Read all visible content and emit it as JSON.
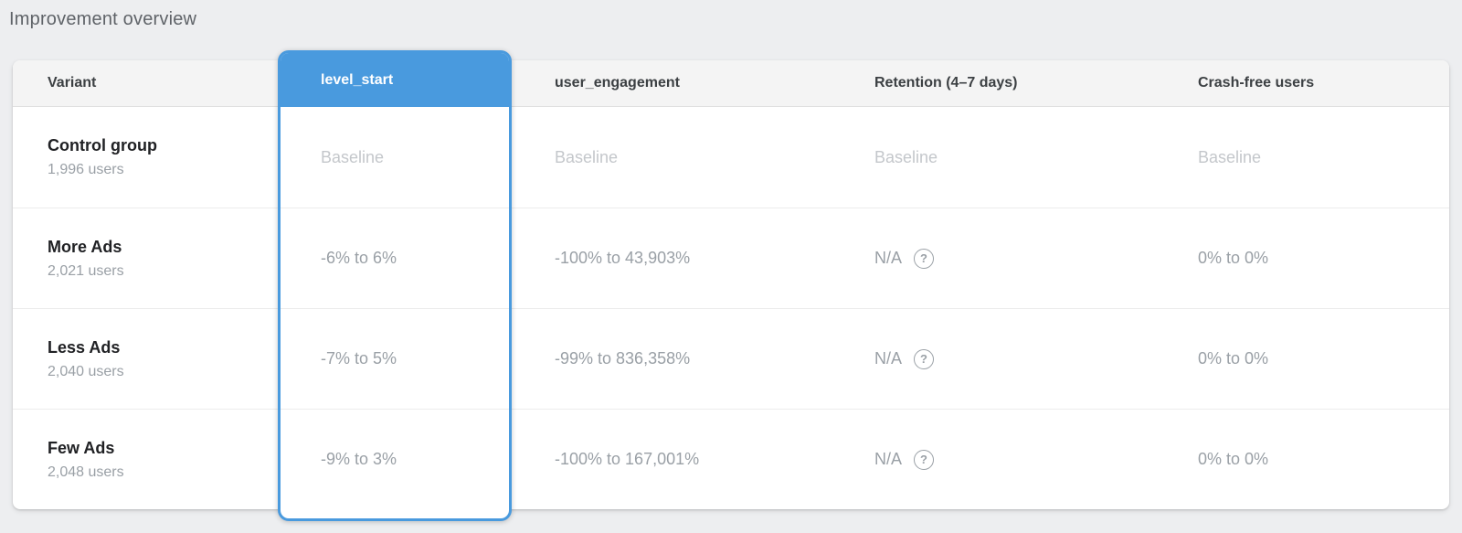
{
  "page": {
    "title": "Improvement overview"
  },
  "colors": {
    "accent_blue": "#499ade",
    "page_background": "#edeef0",
    "header_band": "#f4f4f4",
    "muted_text": "#9aa0a6",
    "baseline_text": "#c4c7cb"
  },
  "icons": {
    "help": "?"
  },
  "table": {
    "columns": {
      "variant": {
        "label": "Variant"
      },
      "level_start": {
        "label": "level_start",
        "selected": true
      },
      "user_engagement": {
        "label": "user_engagement"
      },
      "retention": {
        "label": "Retention (4–7 days)"
      },
      "crash_free": {
        "label": "Crash-free users"
      }
    },
    "rows": [
      {
        "variant": "Control group",
        "users": "1,996 users",
        "level_start": "Baseline",
        "user_engagement": "Baseline",
        "retention": "Baseline",
        "crash_free": "Baseline"
      },
      {
        "variant": "More Ads",
        "users": "2,021 users",
        "level_start": "-6% to 6%",
        "user_engagement": "-100% to 43,903%",
        "retention": "N/A",
        "crash_free": "0% to 0%"
      },
      {
        "variant": "Less Ads",
        "users": "2,040 users",
        "level_start": "-7% to 5%",
        "user_engagement": "-99% to 836,358%",
        "retention": "N/A",
        "crash_free": "0% to 0%"
      },
      {
        "variant": "Few Ads",
        "users": "2,048 users",
        "level_start": "-9% to 3%",
        "user_engagement": "-100% to 167,001%",
        "retention": "N/A",
        "crash_free": "0% to 0%"
      }
    ]
  }
}
